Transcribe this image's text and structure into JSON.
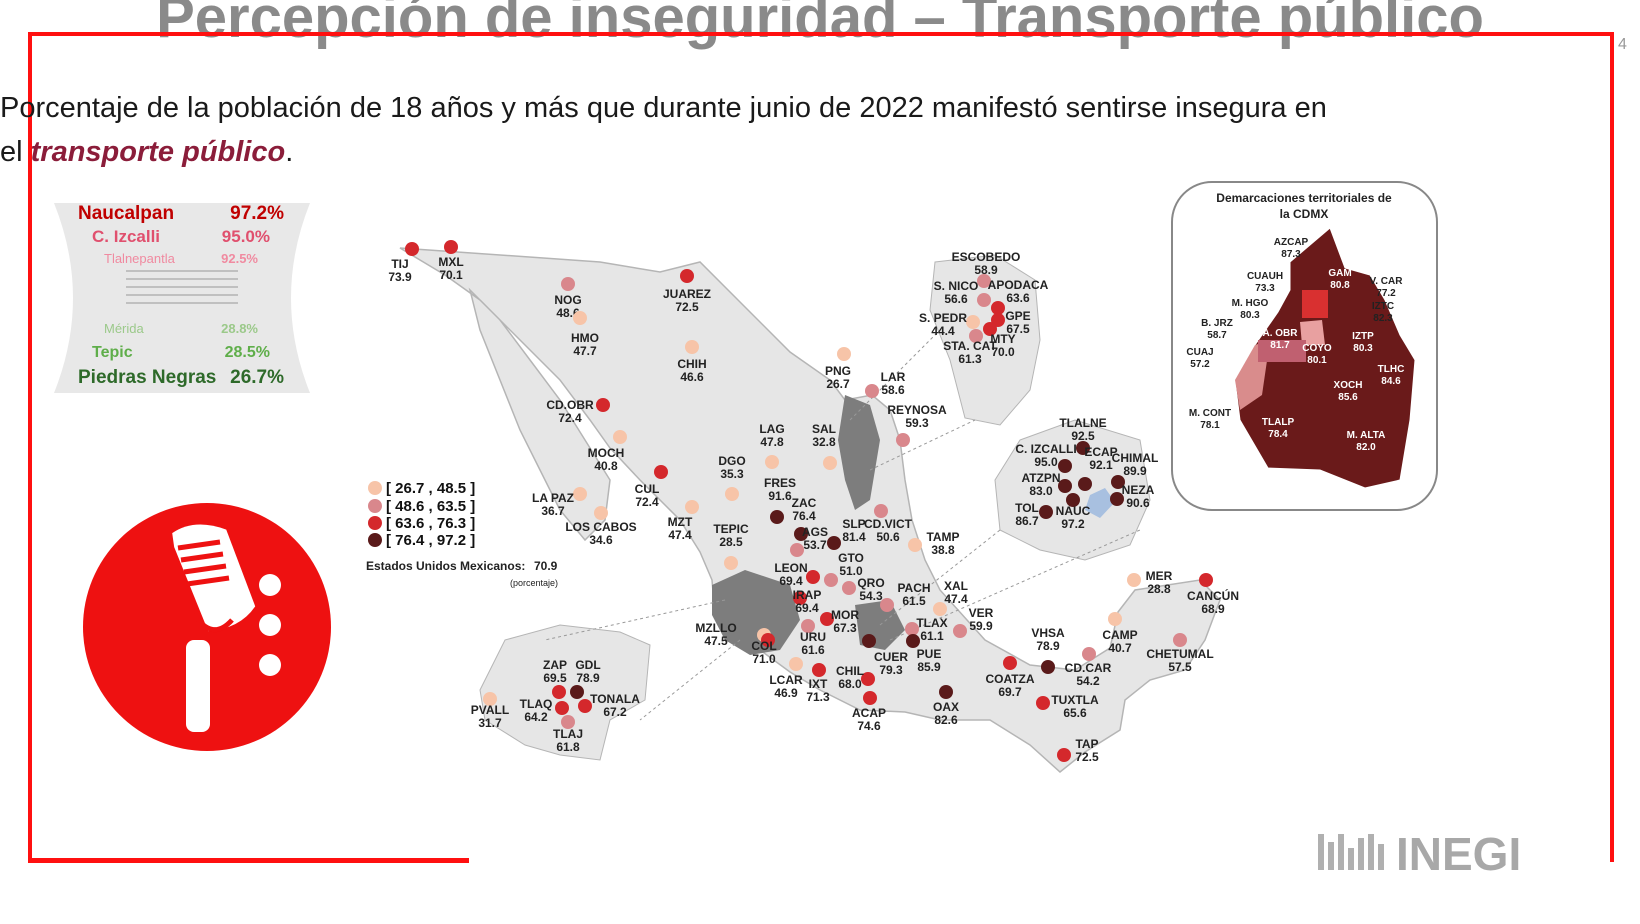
{
  "title": "Percepción de inseguridad – Transporte público",
  "subtitle": {
    "line1": "Porcentaje de la población de 18 años y más que durante junio de 2022 manifestó sentirse insegura en",
    "line2_prefix": "el ",
    "line2_highlight": "transporte público",
    "line2_suffix": "."
  },
  "page_number": "4",
  "ranking": {
    "top": [
      {
        "name": "Naucalpan",
        "value": "97.2%",
        "color": "#c00000"
      },
      {
        "name": "C. Izcalli",
        "value": "95.0%",
        "color": "#e0506e"
      },
      {
        "name": "Tlalnepantla",
        "value": "92.5%",
        "color": "#f08aa0"
      }
    ],
    "bottom": [
      {
        "name": "Mérida",
        "value": "28.8%",
        "color": "#9bc98a"
      },
      {
        "name": "Tepic",
        "value": "28.5%",
        "color": "#5fae4a"
      },
      {
        "name": "Piedras Negras",
        "value": "26.7%",
        "color": "#2e6a2a"
      }
    ]
  },
  "legend": {
    "items": [
      {
        "label": "[ 26.7 , 48.5 ]",
        "color": "#f7c4a8"
      },
      {
        "label": "[ 48.6 , 63.5 ]",
        "color": "#d9878c"
      },
      {
        "label": "[ 63.6 , 76.3 ]",
        "color": "#d4282c"
      },
      {
        "label": "[ 76.4 , 97.2 ]",
        "color": "#5a1a1a"
      }
    ],
    "national_label": "Estados Unidos Mexicanos:",
    "national_value": "70.9",
    "unit": "(porcentaje)"
  },
  "cdmx": {
    "title_line1": "Demarcaciones territoriales de",
    "title_line2": "la CDMX",
    "labels": [
      {
        "name": "AZCAP",
        "value": "87.3"
      },
      {
        "name": "CUAUH",
        "value": "73.3"
      },
      {
        "name": "GAM",
        "value": "80.8"
      },
      {
        "name": "V. CAR",
        "value": "77.2"
      },
      {
        "name": "M. HGO",
        "value": "80.3"
      },
      {
        "name": "IZTC",
        "value": "82.3"
      },
      {
        "name": "B. JRZ",
        "value": "58.7"
      },
      {
        "name": "A. OBR",
        "value": "81.7"
      },
      {
        "name": "COYO",
        "value": "80.1"
      },
      {
        "name": "IZTP",
        "value": "80.3"
      },
      {
        "name": "CUAJ",
        "value": "57.2"
      },
      {
        "name": "TLHC",
        "value": "84.6"
      },
      {
        "name": "XOCH",
        "value": "85.6"
      },
      {
        "name": "M. CONT",
        "value": "78.1"
      },
      {
        "name": "TLALP",
        "value": "78.4"
      },
      {
        "name": "M. ALTA",
        "value": "82.0"
      }
    ]
  },
  "cities": [
    {
      "name": "TIJ",
      "value": "73.9",
      "cls": 2
    },
    {
      "name": "MXL",
      "value": "70.1",
      "cls": 2
    },
    {
      "name": "NOG",
      "value": "48.6",
      "cls": 1
    },
    {
      "name": "JUAREZ",
      "value": "72.5",
      "cls": 2
    },
    {
      "name": "HMO",
      "value": "47.7",
      "cls": 0
    },
    {
      "name": "CHIH",
      "value": "46.6",
      "cls": 0
    },
    {
      "name": "CD.OBR",
      "value": "72.4",
      "cls": 2
    },
    {
      "name": "MOCH",
      "value": "40.8",
      "cls": 0
    },
    {
      "name": "LA PAZ",
      "value": "36.7",
      "cls": 0
    },
    {
      "name": "LOS CABOS",
      "value": "34.6",
      "cls": 0
    },
    {
      "name": "CUL",
      "value": "72.4",
      "cls": 2
    },
    {
      "name": "MZT",
      "value": "47.4",
      "cls": 0
    },
    {
      "name": "DGO",
      "value": "35.3",
      "cls": 0
    },
    {
      "name": "LAG",
      "value": "47.8",
      "cls": 0
    },
    {
      "name": "SAL",
      "value": "32.8",
      "cls": 0
    },
    {
      "name": "PNG",
      "value": "26.7",
      "cls": 0
    },
    {
      "name": "LAR",
      "value": "58.6",
      "cls": 1
    },
    {
      "name": "REYNOSA",
      "value": "59.3",
      "cls": 1
    },
    {
      "name": "FRES",
      "value": "91.6",
      "cls": 3
    },
    {
      "name": "ZAC",
      "value": "76.4",
      "cls": 3
    },
    {
      "name": "AGS",
      "value": "53.7",
      "cls": 1
    },
    {
      "name": "SLP",
      "value": "81.4",
      "cls": 3
    },
    {
      "name": "CD.VICT",
      "value": "50.6",
      "cls": 1
    },
    {
      "name": "TAMP",
      "value": "38.8",
      "cls": 0
    },
    {
      "name": "TEPIC",
      "value": "28.5",
      "cls": 0
    },
    {
      "name": "LEON",
      "value": "69.4",
      "cls": 2
    },
    {
      "name": "GTO",
      "value": "51.0",
      "cls": 1
    },
    {
      "name": "QRO",
      "value": "54.3",
      "cls": 1
    },
    {
      "name": "PACH",
      "value": "61.5",
      "cls": 1
    },
    {
      "name": "XAL",
      "value": "47.4",
      "cls": 0
    },
    {
      "name": "IRAP",
      "value": "69.4",
      "cls": 2
    },
    {
      "name": "MOR",
      "value": "67.3",
      "cls": 2
    },
    {
      "name": "TLAX",
      "value": "61.1",
      "cls": 1
    },
    {
      "name": "VER",
      "value": "59.9",
      "cls": 1
    },
    {
      "name": "MZLLO",
      "value": "47.5",
      "cls": 0
    },
    {
      "name": "COL",
      "value": "71.0",
      "cls": 2
    },
    {
      "name": "URU",
      "value": "61.6",
      "cls": 1
    },
    {
      "name": "CUER",
      "value": "79.3",
      "cls": 3
    },
    {
      "name": "PUE",
      "value": "85.9",
      "cls": 3
    },
    {
      "name": "LCAR",
      "value": "46.9",
      "cls": 0
    },
    {
      "name": "IXT",
      "value": "71.3",
      "cls": 2
    },
    {
      "name": "CHIL",
      "value": "68.0",
      "cls": 2
    },
    {
      "name": "ACAP",
      "value": "74.6",
      "cls": 2
    },
    {
      "name": "OAX",
      "value": "82.6",
      "cls": 3
    },
    {
      "name": "COATZA",
      "value": "69.7",
      "cls": 2
    },
    {
      "name": "VHSA",
      "value": "78.9",
      "cls": 3
    },
    {
      "name": "CD.CAR",
      "value": "54.2",
      "cls": 1
    },
    {
      "name": "CAMP",
      "value": "40.7",
      "cls": 0
    },
    {
      "name": "MER",
      "value": "28.8",
      "cls": 0
    },
    {
      "name": "CANCÚN",
      "value": "68.9",
      "cls": 2
    },
    {
      "name": "CHETUMAL",
      "value": "57.5",
      "cls": 1
    },
    {
      "name": "TUXTLA",
      "value": "65.6",
      "cls": 2
    },
    {
      "name": "TAP",
      "value": "72.5",
      "cls": 2
    },
    {
      "name": "ESCOBEDO",
      "value": "58.9",
      "cls": 1
    },
    {
      "name": "S. NICO",
      "value": "56.6",
      "cls": 1
    },
    {
      "name": "APODACA",
      "value": "63.6",
      "cls": 2
    },
    {
      "name": "S. PEDR",
      "value": "44.4",
      "cls": 0
    },
    {
      "name": "GPE",
      "value": "67.5",
      "cls": 2
    },
    {
      "name": "STA. CAT",
      "value": "61.3",
      "cls": 1
    },
    {
      "name": "MTY",
      "value": "70.0",
      "cls": 2
    },
    {
      "name": "TLALNE",
      "value": "92.5",
      "cls": 3
    },
    {
      "name": "C. IZCALLI",
      "value": "95.0",
      "cls": 3
    },
    {
      "name": "ECAP",
      "value": "92.1",
      "cls": 3
    },
    {
      "name": "CHIMAL",
      "value": "89.9",
      "cls": 3
    },
    {
      "name": "ATZPN",
      "value": "83.0",
      "cls": 3
    },
    {
      "name": "NEZA",
      "value": "90.6",
      "cls": 3
    },
    {
      "name": "TOL",
      "value": "86.7",
      "cls": 3
    },
    {
      "name": "NAUC",
      "value": "97.2",
      "cls": 3
    },
    {
      "name": "ZAP",
      "value": "69.5",
      "cls": 2
    },
    {
      "name": "GDL",
      "value": "78.9",
      "cls": 3
    },
    {
      "name": "TONALA",
      "value": "67.2",
      "cls": 2
    },
    {
      "name": "TLAQ",
      "value": "64.2",
      "cls": 2
    },
    {
      "name": "TLAJ",
      "value": "61.8",
      "cls": 1
    },
    {
      "name": "PVALL",
      "value": "31.7",
      "cls": 0
    }
  ],
  "logo": {
    "text": "INEGI"
  }
}
